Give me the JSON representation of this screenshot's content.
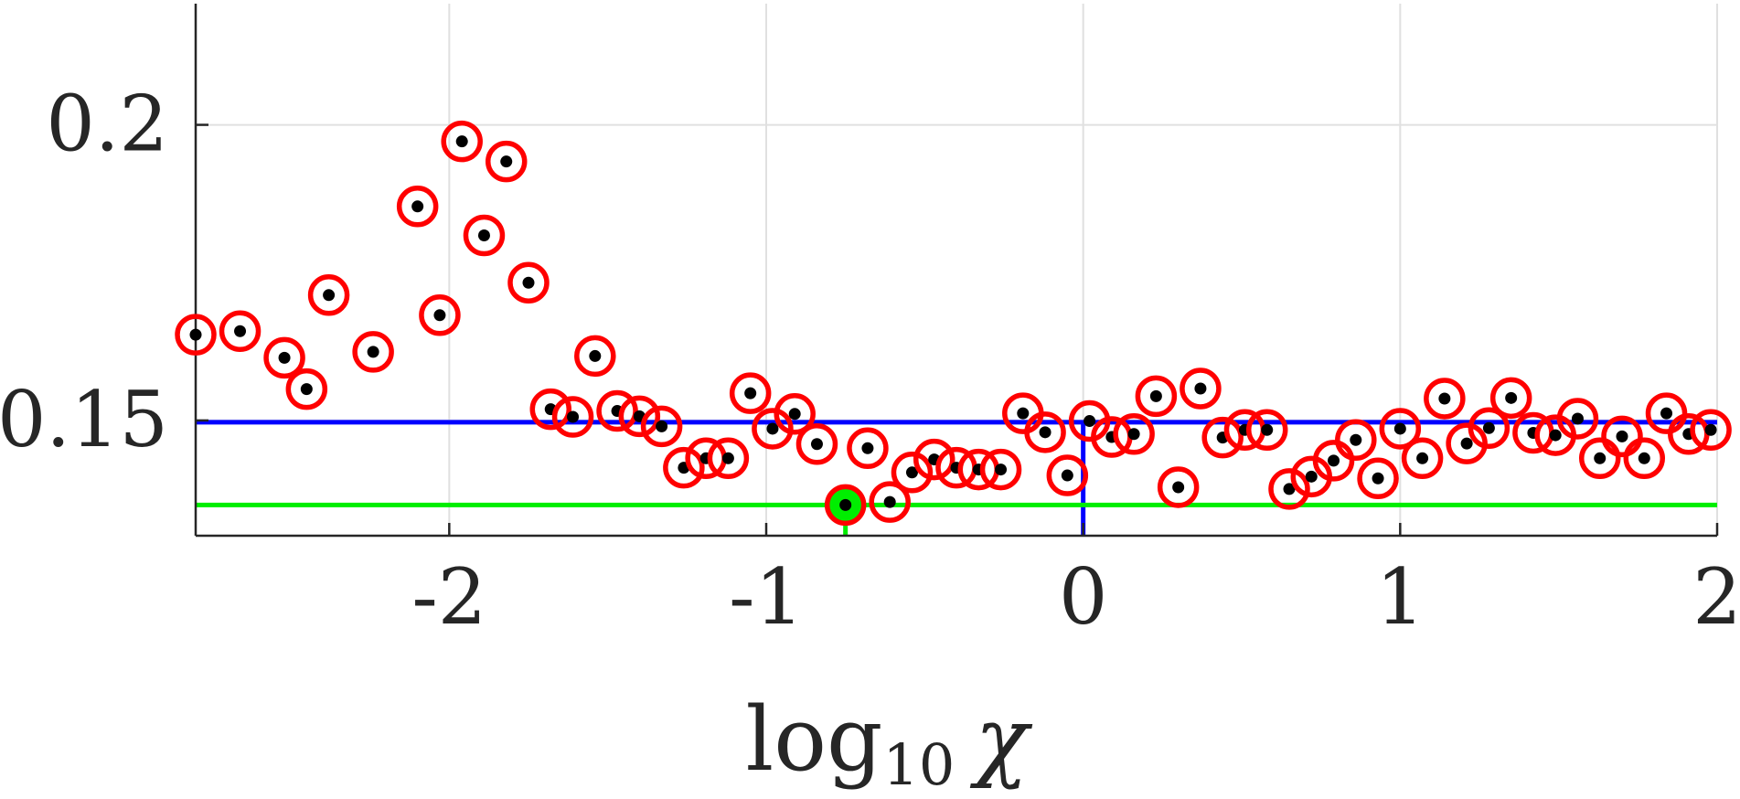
{
  "chart_data": {
    "type": "scatter",
    "xlabel": {
      "base": "log",
      "subscript": "10",
      "symbol": "χ"
    },
    "ylabel": "",
    "title": "",
    "xlim": [
      -2.8,
      2.0
    ],
    "ylim": [
      0.1305,
      0.2205
    ],
    "grid": true,
    "x_ticks": [
      -2,
      -1,
      0,
      1,
      2
    ],
    "x_tick_labels": [
      "-2",
      "-1",
      "0",
      "1",
      "2"
    ],
    "y_ticks": [
      0.15,
      0.2
    ],
    "y_tick_labels": [
      "0.15",
      "0.2"
    ],
    "colors": {
      "marker_ring": "#ff0000",
      "marker_dot": "#000000",
      "highlight_fill": "#00ee00",
      "reference_line_h": "#0000ff",
      "min_line": "#00ee00",
      "grid": "#e0e0e0",
      "axis": "#262626"
    },
    "reference": {
      "x": 0.0,
      "y": 0.1497
    },
    "minimum": {
      "x": -0.75,
      "y": 0.1357
    },
    "series": [
      {
        "x": [
          -2.8,
          -2.66,
          -2.52,
          -2.45,
          -2.38,
          -2.24,
          -2.1,
          -2.03,
          -1.96,
          -1.89,
          -1.82,
          -1.75,
          -1.68,
          -1.61,
          -1.54,
          -1.47,
          -1.4,
          -1.33,
          -1.26,
          -1.19,
          -1.12,
          -1.05,
          -0.98,
          -0.91,
          -0.84,
          -0.75,
          -0.68,
          -0.61,
          -0.54,
          -0.47,
          -0.4,
          -0.33,
          -0.26,
          -0.19,
          -0.12,
          -0.05,
          0.02,
          0.09,
          0.16,
          0.23,
          0.3,
          0.37,
          0.44,
          0.51,
          0.58,
          0.65,
          0.72,
          0.79,
          0.86,
          0.93,
          1.0,
          1.07,
          1.14,
          1.21,
          1.28,
          1.35,
          1.42,
          1.49,
          1.56,
          1.63,
          1.7,
          1.77,
          1.84,
          1.91,
          1.98
        ],
        "y": [
          0.1645,
          0.1651,
          0.1606,
          0.1553,
          0.1712,
          0.1616,
          0.1862,
          0.1678,
          0.1972,
          0.1813,
          0.1938,
          0.1733,
          0.1519,
          0.1506,
          0.1609,
          0.1516,
          0.1507,
          0.149,
          0.142,
          0.1436,
          0.1436,
          0.1546,
          0.1486,
          0.1511,
          0.146,
          0.1357,
          0.1453,
          0.1362,
          0.1412,
          0.1434,
          0.142,
          0.1417,
          0.1417,
          0.1512,
          0.148,
          0.1407,
          0.1499,
          0.1472,
          0.1477,
          0.1541,
          0.1387,
          0.1554,
          0.1471,
          0.1484,
          0.1484,
          0.1384,
          0.1405,
          0.1432,
          0.1467,
          0.1402,
          0.1486,
          0.1436,
          0.1537,
          0.1461,
          0.1487,
          0.1538,
          0.1479,
          0.1475,
          0.1503,
          0.1436,
          0.1473,
          0.1436,
          0.1512,
          0.1477,
          0.1484
        ]
      }
    ]
  }
}
